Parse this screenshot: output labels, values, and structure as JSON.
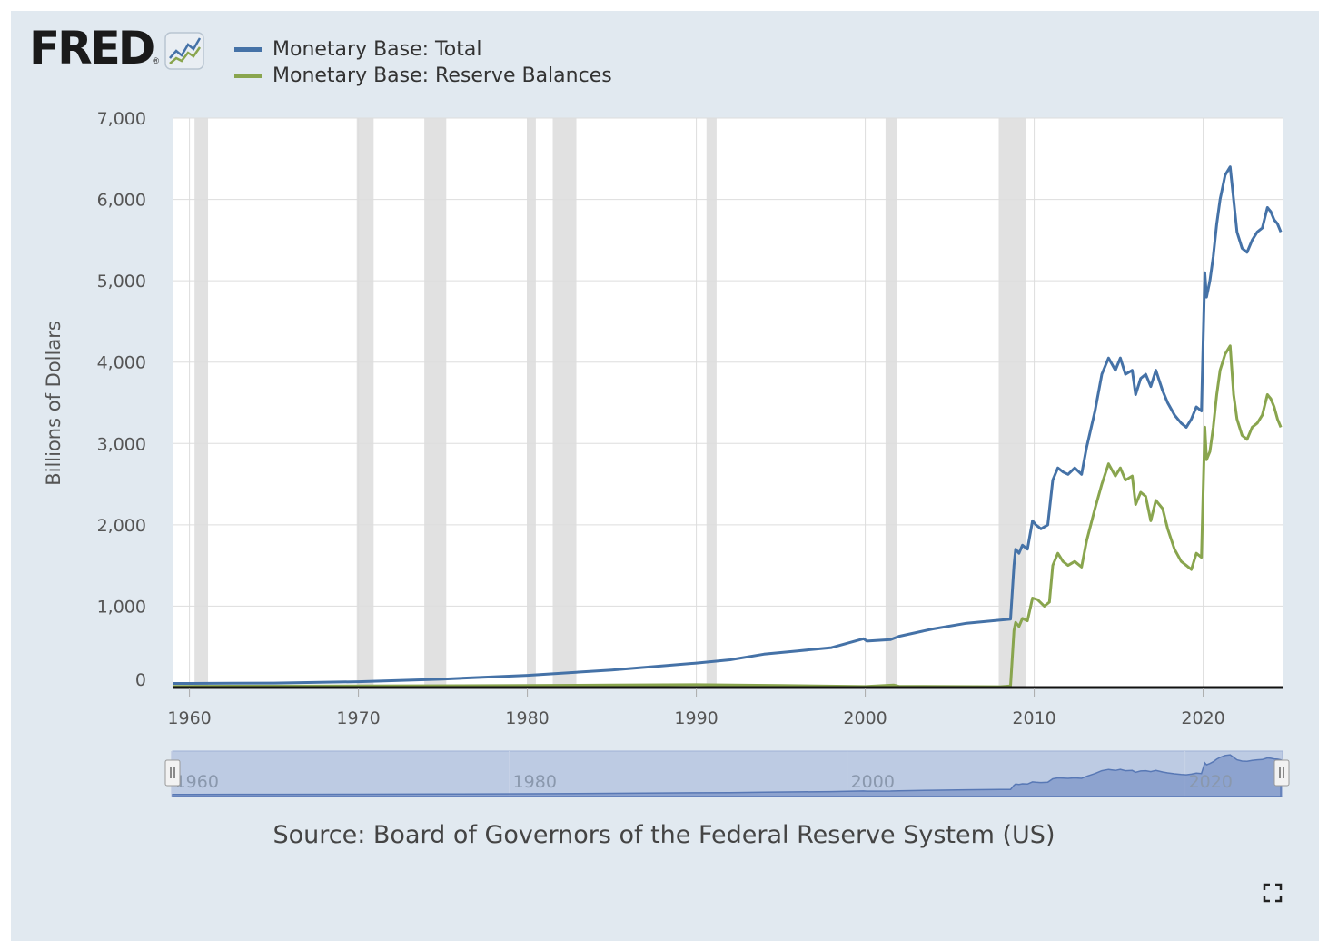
{
  "logo": {
    "text": "FRED",
    "reg": "®"
  },
  "chart_data": {
    "type": "line",
    "title": "",
    "xlabel": "",
    "ylabel": "Billions of Dollars",
    "xlim": [
      1959.0,
      2024.7
    ],
    "ylim": [
      0,
      7000
    ],
    "yticks": [
      0,
      1000,
      2000,
      3000,
      4000,
      5000,
      6000,
      7000
    ],
    "ytick_labels": [
      "0",
      "1,000",
      "2,000",
      "3,000",
      "4,000",
      "5,000",
      "6,000",
      "7,000"
    ],
    "xticks": [
      1960,
      1970,
      1980,
      1990,
      2000,
      2010,
      2020
    ],
    "xtick_labels": [
      "1960",
      "1970",
      "1980",
      "1990",
      "2000",
      "2010",
      "2020"
    ],
    "grid": true,
    "legend_position": "top-left",
    "recessions": [
      [
        1960.3,
        1961.1
      ],
      [
        1969.9,
        1970.9
      ],
      [
        1973.9,
        1975.2
      ],
      [
        1980.0,
        1980.5
      ],
      [
        1981.5,
        1982.9
      ],
      [
        1990.6,
        1991.2
      ],
      [
        2001.2,
        2001.9
      ],
      [
        2007.9,
        2009.5
      ]
    ],
    "series": [
      {
        "name": "Monetary Base: Total",
        "color": "#4572a7",
        "x": [
          1959.0,
          1960.0,
          1965.0,
          1970.0,
          1975.0,
          1980.0,
          1985.0,
          1990.0,
          1992.0,
          1994.0,
          1996.0,
          1998.0,
          1999.9,
          2000.1,
          2001.5,
          2002.0,
          2004.0,
          2006.0,
          2008.0,
          2008.6,
          2008.8,
          2008.9,
          2009.1,
          2009.3,
          2009.6,
          2009.9,
          2010.1,
          2010.4,
          2010.8,
          2011.1,
          2011.4,
          2011.7,
          2012.0,
          2012.4,
          2012.8,
          2013.1,
          2013.6,
          2014.0,
          2014.4,
          2014.8,
          2015.1,
          2015.4,
          2015.8,
          2016.0,
          2016.3,
          2016.6,
          2016.9,
          2017.2,
          2017.6,
          2017.9,
          2018.3,
          2018.7,
          2019.0,
          2019.3,
          2019.6,
          2019.9,
          2020.1,
          2020.2,
          2020.4,
          2020.6,
          2020.8,
          2021.0,
          2021.3,
          2021.6,
          2021.8,
          2022.0,
          2022.3,
          2022.6,
          2022.9,
          2023.2,
          2023.5,
          2023.8,
          2024.0,
          2024.2,
          2024.4,
          2024.6
        ],
        "values": [
          50,
          50,
          55,
          72,
          104,
          150,
          215,
          300,
          340,
          410,
          450,
          490,
          600,
          570,
          590,
          630,
          720,
          790,
          830,
          840,
          1500,
          1700,
          1650,
          1750,
          1700,
          2050,
          2000,
          1950,
          2000,
          2550,
          2700,
          2650,
          2620,
          2700,
          2620,
          2950,
          3400,
          3850,
          4050,
          3900,
          4050,
          3850,
          3900,
          3600,
          3800,
          3850,
          3700,
          3900,
          3650,
          3500,
          3350,
          3250,
          3200,
          3300,
          3450,
          3400,
          5100,
          4800,
          5000,
          5300,
          5700,
          6000,
          6300,
          6400,
          6000,
          5600,
          5400,
          5350,
          5500,
          5600,
          5650,
          5900,
          5850,
          5750,
          5700,
          5600
        ]
      },
      {
        "name": "Monetary Base: Reserve Balances",
        "color": "#89a54e",
        "x": [
          1959.0,
          1970.0,
          1980.0,
          1985.0,
          1990.0,
          1995.0,
          2000.0,
          2001.7,
          2002.0,
          2008.0,
          2008.6,
          2008.8,
          2008.9,
          2009.1,
          2009.3,
          2009.6,
          2009.9,
          2010.2,
          2010.6,
          2010.9,
          2011.1,
          2011.4,
          2011.7,
          2012.0,
          2012.4,
          2012.8,
          2013.1,
          2013.6,
          2014.0,
          2014.4,
          2014.8,
          2015.1,
          2015.4,
          2015.8,
          2016.0,
          2016.3,
          2016.6,
          2016.9,
          2017.2,
          2017.6,
          2017.9,
          2018.3,
          2018.7,
          2019.0,
          2019.3,
          2019.6,
          2019.9,
          2020.1,
          2020.2,
          2020.4,
          2020.6,
          2020.8,
          2021.0,
          2021.3,
          2021.6,
          2021.8,
          2022.0,
          2022.3,
          2022.6,
          2022.9,
          2023.2,
          2023.5,
          2023.8,
          2024.0,
          2024.2,
          2024.4,
          2024.6
        ],
        "values": [
          15,
          20,
          25,
          30,
          35,
          25,
          12,
          30,
          15,
          10,
          20,
          700,
          800,
          750,
          850,
          820,
          1100,
          1080,
          1000,
          1050,
          1500,
          1650,
          1550,
          1500,
          1550,
          1480,
          1800,
          2200,
          2500,
          2750,
          2600,
          2700,
          2550,
          2600,
          2250,
          2400,
          2350,
          2050,
          2300,
          2200,
          1950,
          1700,
          1550,
          1500,
          1450,
          1650,
          1600,
          3200,
          2800,
          2900,
          3200,
          3600,
          3900,
          4100,
          4200,
          3600,
          3300,
          3100,
          3050,
          3200,
          3250,
          3350,
          3600,
          3550,
          3450,
          3300,
          3200
        ]
      }
    ],
    "navigator": {
      "xtick_labels": [
        "1960",
        "1980",
        "2000",
        "2020"
      ],
      "xticks": [
        1960,
        1980,
        2000,
        2020
      ]
    }
  },
  "source": {
    "text": "Source: Board of Governors of the Federal Reserve System (US)"
  },
  "icons": {
    "fullscreen": "fullscreen-icon",
    "logo_graph": "line-graph-icon",
    "nav_handle": "drag-handle-icon"
  }
}
